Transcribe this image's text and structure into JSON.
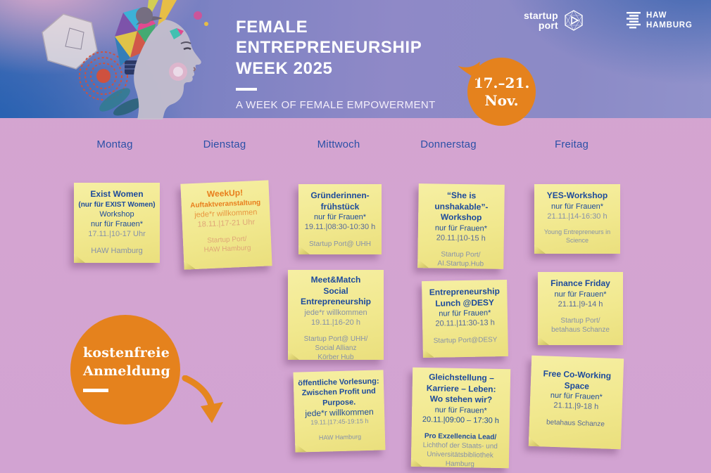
{
  "colors": {
    "accent_orange": "#E5821D",
    "note_yellow": "#F1E88E",
    "note_text_navy": "#1C4A9C",
    "note_text_gray": "#8691A9",
    "note_text_orange": "#E87E1C",
    "day_label_blue": "#2B50A6",
    "background_pink": "#D2A3D2",
    "header_blue": "#1B5CB0"
  },
  "header": {
    "title": "FEMALE\nENTREPRENEURSHIP\nWEEK 2025",
    "subtitle": "A WEEK OF FEMALE EMPOWERMENT",
    "date_badge": "17.–21.\nNov.",
    "logo_startup_port": "startup\nport",
    "logo_haw": "HAW\nHAMBURG"
  },
  "days": [
    "Montag",
    "Dienstag",
    "Mittwoch",
    "Donnerstag",
    "Freitag"
  ],
  "free_badge": "kostenfreie\nAnmeldung",
  "notes": [
    {
      "id": "exist-women",
      "day": "Montag",
      "lines": [
        {
          "t": "Exist Women",
          "s": "t1",
          "c": "n"
        },
        {
          "t": "(nur für EXIST Women)",
          "s": "t2",
          "c": "n"
        },
        {
          "t": "Workshop",
          "s": "b",
          "c": "n"
        },
        {
          "t": "nur für Frauen*",
          "s": "b",
          "c": "n"
        },
        {
          "t": "17.11.|10-17 Uhr",
          "s": "b",
          "c": "g"
        },
        {
          "t": "",
          "s": "gap"
        },
        {
          "t": "HAW Hamburg",
          "s": "b",
          "c": "g"
        }
      ]
    },
    {
      "id": "weekup-auftakt",
      "day": "Dienstag",
      "lines": [
        {
          "t": "WeekUp!",
          "s": "t1",
          "c": "o"
        },
        {
          "t": "Auftaktveranstaltung",
          "s": "t2",
          "c": "o"
        },
        {
          "t": "jede*r willkommen",
          "s": "b",
          "c": "ol"
        },
        {
          "t": "18.11.|17-21 Uhr",
          "s": "b",
          "c": "of"
        },
        {
          "t": "",
          "s": "gap"
        },
        {
          "t": "Startup Port/",
          "s": "bs",
          "c": "of"
        },
        {
          "t": "HAW Hamburg",
          "s": "bs",
          "c": "of"
        }
      ]
    },
    {
      "id": "gruenderinnenfruehstueck",
      "day": "Mittwoch",
      "lines": [
        {
          "t": "Gründerinnen-",
          "s": "t1",
          "c": "n"
        },
        {
          "t": "frühstück",
          "s": "t1",
          "c": "n"
        },
        {
          "t": "nur für Frauen*",
          "s": "b",
          "c": "n"
        },
        {
          "t": "19.11.|08:30-10:30 h",
          "s": "b",
          "c": "m"
        },
        {
          "t": "",
          "s": "gap"
        },
        {
          "t": "Startup Port@ UHH",
          "s": "bs",
          "c": "g"
        }
      ]
    },
    {
      "id": "she-is-unshakable",
      "day": "Donnerstag",
      "lines": [
        {
          "t": "“She is",
          "s": "t1",
          "c": "n"
        },
        {
          "t": "unshakable”-",
          "s": "t1",
          "c": "n"
        },
        {
          "t": "Workshop",
          "s": "t1",
          "c": "n"
        },
        {
          "t": "nur für Frauen*",
          "s": "b",
          "c": "n"
        },
        {
          "t": "20.11.|10-15 h",
          "s": "b",
          "c": "m"
        },
        {
          "t": "",
          "s": "gap"
        },
        {
          "t": "Startup Port/",
          "s": "bs",
          "c": "g"
        },
        {
          "t": "AI.Startup.Hub",
          "s": "bs",
          "c": "g"
        }
      ]
    },
    {
      "id": "yes-workshop",
      "day": "Freitag",
      "lines": [
        {
          "t": "YES-Workshop",
          "s": "t1",
          "c": "n"
        },
        {
          "t": "nur für Frauen*",
          "s": "b",
          "c": "n"
        },
        {
          "t": "21.11.|14-16:30 h",
          "s": "b",
          "c": "g"
        },
        {
          "t": "",
          "s": "gap"
        },
        {
          "t": "Young Entrepreneurs in",
          "s": "xs",
          "c": "g"
        },
        {
          "t": "Science",
          "s": "xs",
          "c": "g"
        }
      ]
    },
    {
      "id": "meet-match-social-entrepreneurship",
      "day": "Mittwoch",
      "lines": [
        {
          "t": "Meet&Match",
          "s": "t1",
          "c": "n"
        },
        {
          "t": "Social",
          "s": "t1",
          "c": "n"
        },
        {
          "t": "Entrepreneurship",
          "s": "t1",
          "c": "n"
        },
        {
          "t": "jede*r willkommen",
          "s": "b",
          "c": "g"
        },
        {
          "t": "19.11.|16-20 h",
          "s": "b",
          "c": "g"
        },
        {
          "t": "",
          "s": "gap"
        },
        {
          "t": "Startup Port@ UHH/",
          "s": "bs",
          "c": "g"
        },
        {
          "t": "Social Allianz",
          "s": "bs",
          "c": "g"
        },
        {
          "t": "Körber Hub",
          "s": "bs",
          "c": "g"
        }
      ]
    },
    {
      "id": "entrepreneurship-lunch-desy",
      "day": "Donnerstag",
      "lines": [
        {
          "t": "Entrepreneurship",
          "s": "t1",
          "c": "n"
        },
        {
          "t": "Lunch @DESY",
          "s": "t1",
          "c": "n"
        },
        {
          "t": "nur für Frauen*",
          "s": "b",
          "c": "n"
        },
        {
          "t": "20.11.|11:30-13 h",
          "s": "b",
          "c": "m"
        },
        {
          "t": "",
          "s": "gap"
        },
        {
          "t": "Startup Port@DESY",
          "s": "bs",
          "c": "g"
        }
      ]
    },
    {
      "id": "finance-friday",
      "day": "Freitag",
      "lines": [
        {
          "t": "Finance Friday",
          "s": "t1",
          "c": "n"
        },
        {
          "t": "nur für Frauen*",
          "s": "b",
          "c": "n"
        },
        {
          "t": "21.11.|9-14  h",
          "s": "b",
          "c": "m"
        },
        {
          "t": "",
          "s": "gap"
        },
        {
          "t": "Startup Port/",
          "s": "bs",
          "c": "g"
        },
        {
          "t": "betahaus Schanze",
          "s": "bs",
          "c": "g"
        }
      ]
    },
    {
      "id": "oeffentliche-vorlesung",
      "day": "Mittwoch",
      "lines": [
        {
          "t": "öffentliche Vorlesung:",
          "s": "t3",
          "c": "n"
        },
        {
          "t": "Zwischen Profit und",
          "s": "t3",
          "c": "n"
        },
        {
          "t": "Purpose.",
          "s": "t3",
          "c": "n"
        },
        {
          "t": "jede*r willkommen",
          "s": "bl",
          "c": "n"
        },
        {
          "t": "19.11.|17:45-19:15 h",
          "s": "xs",
          "c": "g"
        },
        {
          "t": "",
          "s": "gap"
        },
        {
          "t": "HAW Hamburg",
          "s": "xs",
          "c": "g"
        }
      ]
    },
    {
      "id": "gleichstellung-karriere-leben",
      "day": "Donnerstag",
      "lines": [
        {
          "t": "Gleichstellung –",
          "s": "t1",
          "c": "n"
        },
        {
          "t": "Karriere – Leben:",
          "s": "t1",
          "c": "n"
        },
        {
          "t": "Wo stehen wir?",
          "s": "t1",
          "c": "n"
        },
        {
          "t": "nur für Frauen*",
          "s": "b",
          "c": "n"
        },
        {
          "t": "20.11.|09:00 – 17:30 h",
          "s": "b",
          "c": "n"
        },
        {
          "t": "",
          "s": "gap"
        },
        {
          "t": "Pro Exzellencia Lead/",
          "s": "bsb",
          "c": "n"
        },
        {
          "t": "Lichthof der Staats- und",
          "s": "bs",
          "c": "g"
        },
        {
          "t": "Universitätsbibliothek",
          "s": "bs",
          "c": "g"
        },
        {
          "t": "Hamburg",
          "s": "bs",
          "c": "g"
        }
      ]
    },
    {
      "id": "free-co-working-space",
      "day": "Freitag",
      "lines": [
        {
          "t": "Free Co-Working",
          "s": "t1",
          "c": "n"
        },
        {
          "t": "Space",
          "s": "t1",
          "c": "n"
        },
        {
          "t": "nur für Frauen*",
          "s": "b",
          "c": "n"
        },
        {
          "t": "21.11.|9-18  h",
          "s": "b",
          "c": "m"
        },
        {
          "t": "",
          "s": "gap"
        },
        {
          "t": "betahaus Schanze",
          "s": "bs",
          "c": "m"
        }
      ]
    }
  ]
}
